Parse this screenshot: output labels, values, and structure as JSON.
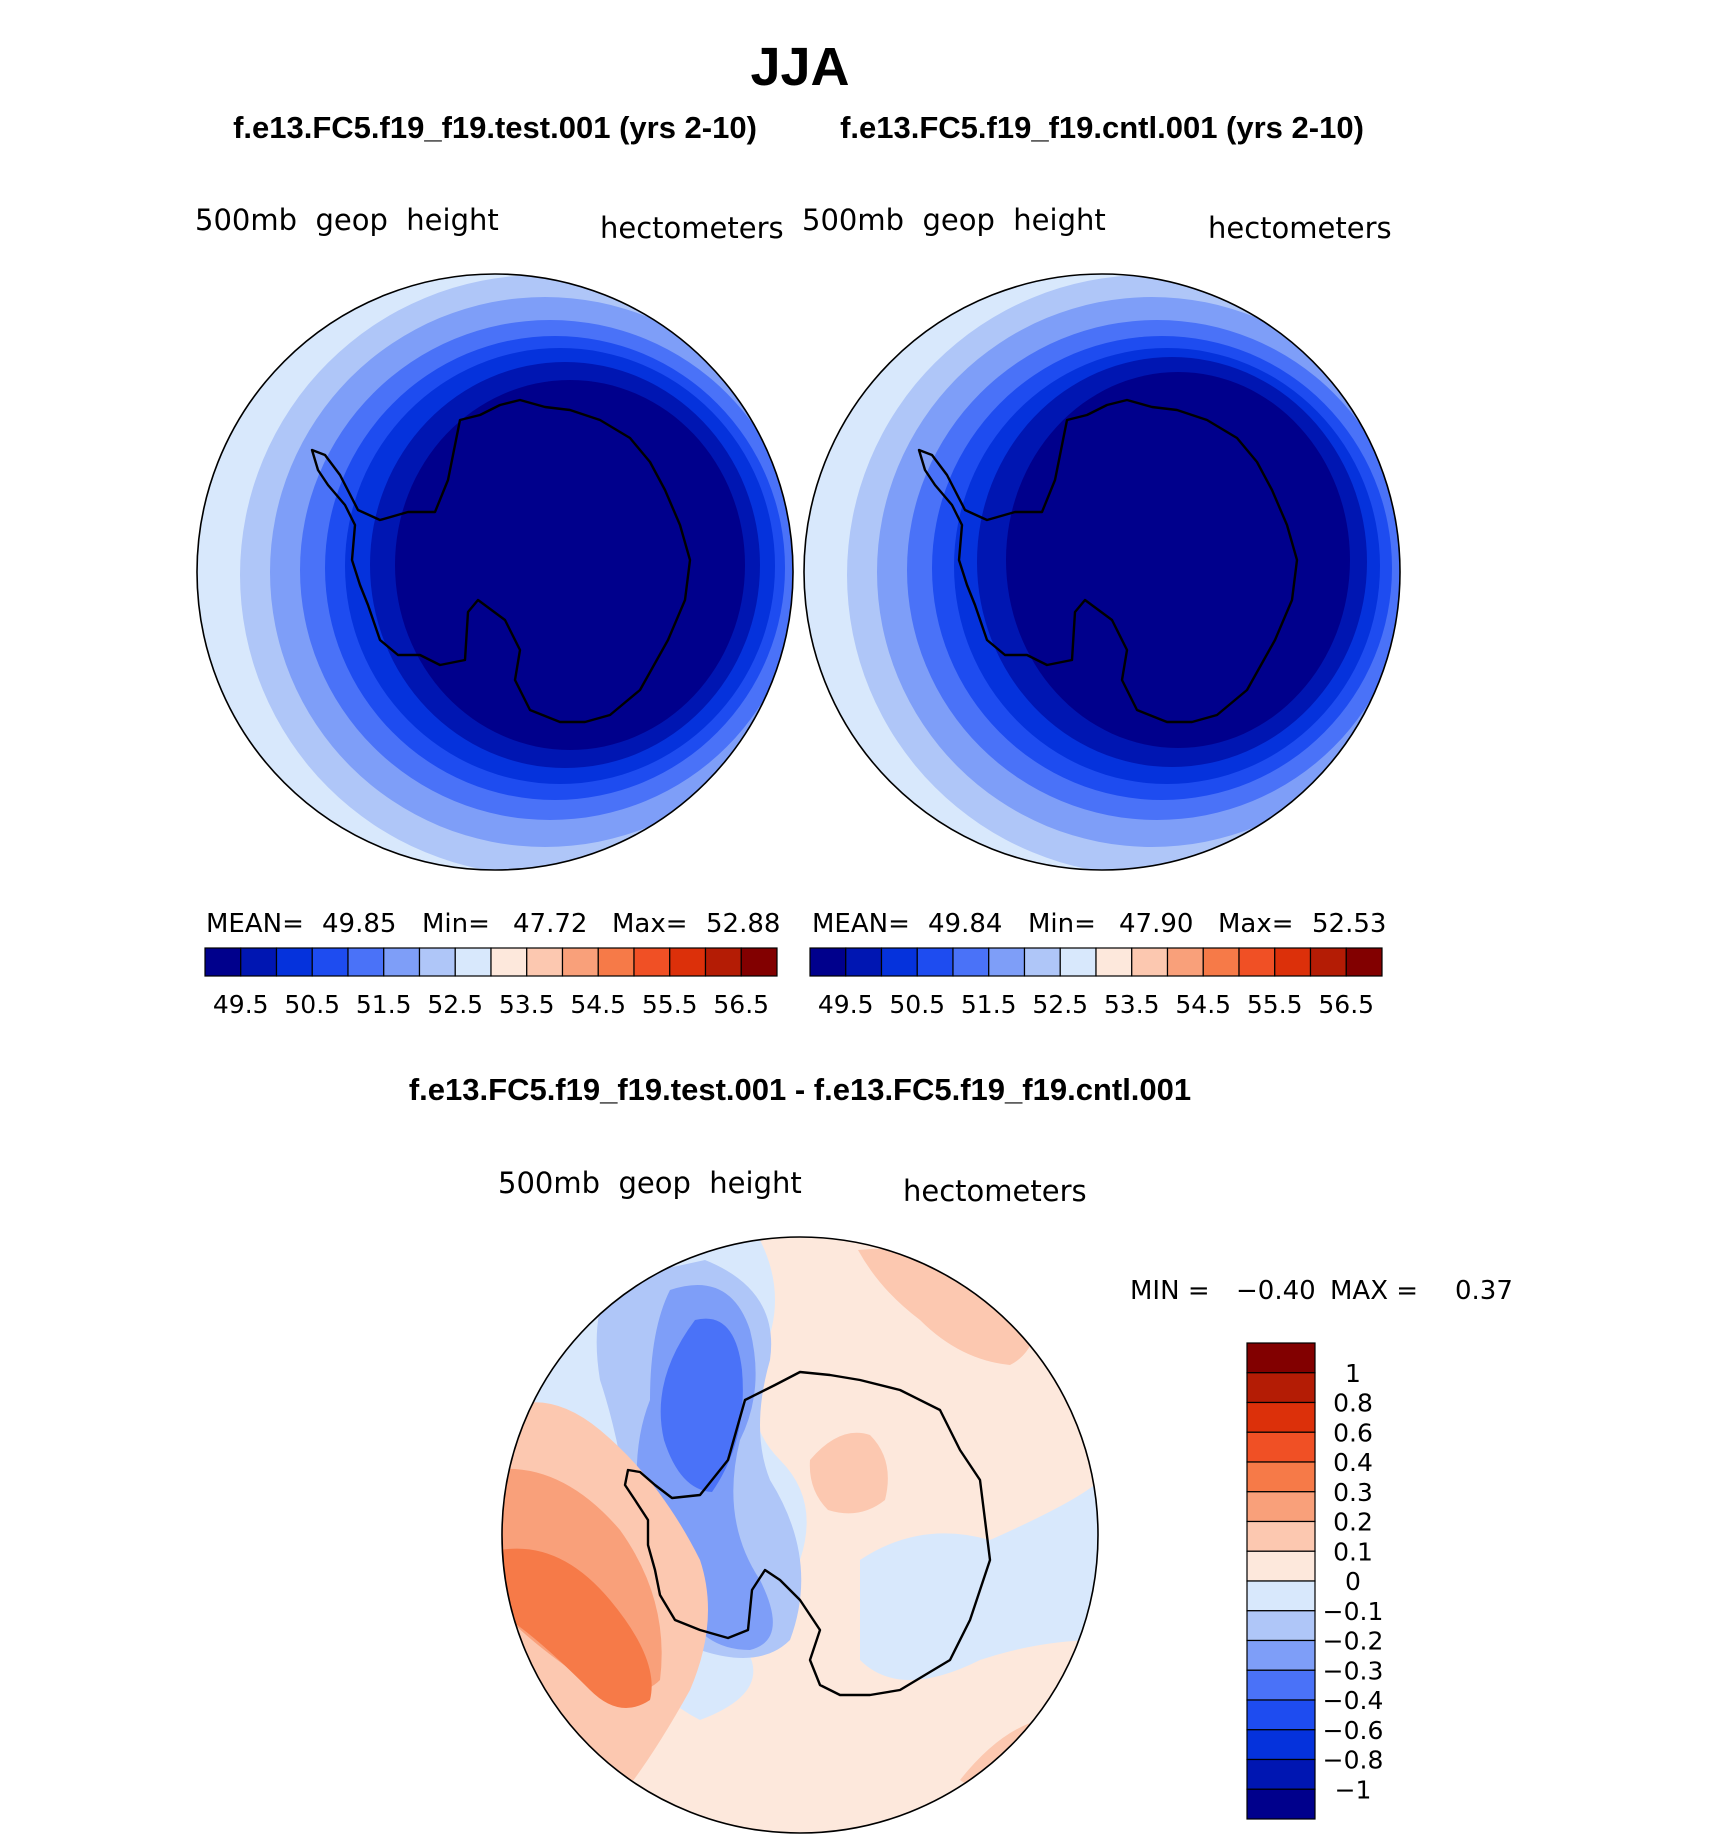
{
  "title": "JJA",
  "panels": [
    {
      "case_title": "f.e13.FC5.f19_f19.test.001 (yrs 2-10)",
      "variable": "500mb  geop  height",
      "units": "hectometers",
      "stats": {
        "mean_label": "MEAN=",
        "mean": "49.85",
        "min_label": "Min=",
        "min": "47.72",
        "max_label": "Max=",
        "max": "52.88"
      }
    },
    {
      "case_title": "f.e13.FC5.f19_f19.cntl.001 (yrs 2-10)",
      "variable": "500mb  geop  height",
      "units": "hectometers",
      "stats": {
        "mean_label": "MEAN=",
        "mean": "49.84",
        "min_label": "Min=",
        "min": "47.90",
        "max_label": "Max=",
        "max": "52.53"
      }
    }
  ],
  "colorbar": {
    "colors": [
      "#00008c",
      "#0016b2",
      "#0532dc",
      "#1e4cf0",
      "#4a72f8",
      "#7e9ef8",
      "#afc6f8",
      "#d8e8fc",
      "#fde8dc",
      "#fcc8b0",
      "#f9a07a",
      "#f67a48",
      "#f05025",
      "#dc300a",
      "#b41c05",
      "#820000"
    ],
    "tick_labels": [
      "49.5",
      "50.5",
      "51.5",
      "52.5",
      "53.5",
      "54.5",
      "55.5",
      "56.5"
    ]
  },
  "diff_panel": {
    "case_title": "f.e13.FC5.f19_f19.test.001 - f.e13.FC5.f19_f19.cntl.001",
    "variable": "500mb  geop  height",
    "units": "hectometers",
    "min_label": "MIN =",
    "min": "−0.40",
    "max_label": "MAX =",
    "max": "0.37",
    "colorbar": {
      "colors_top_to_bottom": [
        "#820000",
        "#b41c05",
        "#dc300a",
        "#f05025",
        "#f67a48",
        "#f9a07a",
        "#fcc8b0",
        "#fde8dc",
        "#d8e8fc",
        "#afc6f8",
        "#7e9ef8",
        "#4a72f8",
        "#1e4cf0",
        "#0532dc",
        "#0016b2",
        "#00008c"
      ],
      "tick_labels_top_to_bottom": [
        "1",
        "0.8",
        "0.6",
        "0.4",
        "0.3",
        "0.2",
        "0.1",
        "0",
        "−0.1",
        "−0.2",
        "−0.3",
        "−0.4",
        "−0.6",
        "−0.8",
        "−1"
      ]
    }
  }
}
